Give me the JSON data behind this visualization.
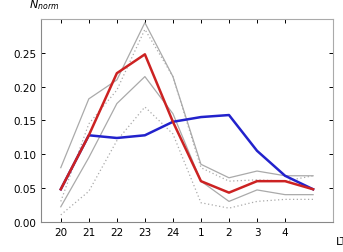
{
  "x_values": [
    20,
    21,
    22,
    23,
    24,
    25,
    26,
    27,
    28,
    29
  ],
  "x_tick_positions": [
    20,
    21,
    22,
    23,
    24,
    25,
    26,
    27,
    28,
    29
  ],
  "x_tick_labels": [
    "20",
    "21",
    "22",
    "23",
    "24",
    "1",
    "2",
    "3",
    "4",
    "LT"
  ],
  "blue_line": [
    0.048,
    0.128,
    0.124,
    0.128,
    0.148,
    0.155,
    0.158,
    0.105,
    0.068,
    0.048
  ],
  "red_line": [
    0.048,
    0.128,
    0.22,
    0.248,
    0.148,
    0.06,
    0.043,
    0.06,
    0.06,
    0.048
  ],
  "gray_solid_upper": [
    0.08,
    0.182,
    0.21,
    0.295,
    0.215,
    0.085,
    0.065,
    0.075,
    0.068,
    0.068
  ],
  "gray_solid_lower": [
    0.022,
    0.095,
    0.175,
    0.215,
    0.16,
    0.06,
    0.03,
    0.047,
    0.04,
    0.04
  ],
  "gray_dot_upper": [
    0.03,
    0.145,
    0.195,
    0.285,
    0.215,
    0.08,
    0.06,
    0.062,
    0.06,
    0.068
  ],
  "gray_dot_lower": [
    0.01,
    0.045,
    0.12,
    0.17,
    0.13,
    0.028,
    0.02,
    0.03,
    0.033,
    0.033
  ],
  "blue_color": "#2222cc",
  "red_color": "#cc2222",
  "gray_solid_color": "#aaaaaa",
  "gray_dot_color": "#aaaaaa",
  "ylim": [
    0,
    0.3
  ],
  "yticks": [
    0,
    0.05,
    0.1,
    0.15,
    0.2,
    0.25
  ],
  "background": "#ffffff",
  "lw_main": 1.8,
  "lw_gray": 0.9
}
